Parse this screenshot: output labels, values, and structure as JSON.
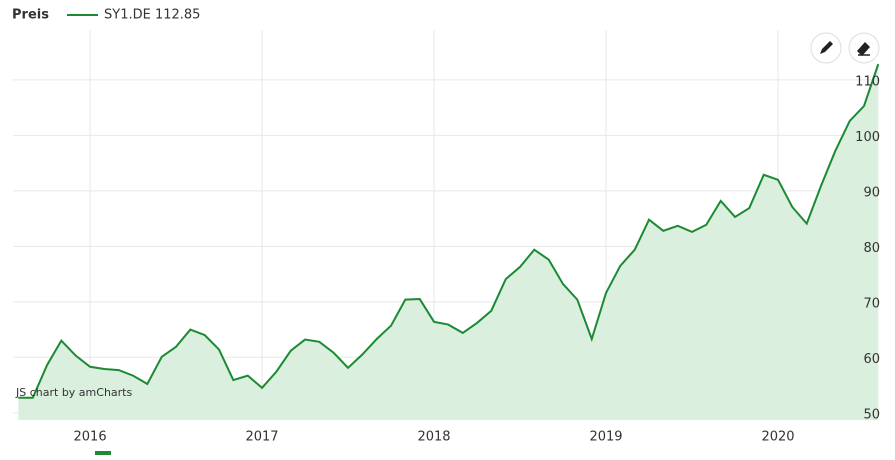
{
  "chart_data": {
    "type": "area",
    "title": "Preis",
    "credit": "JS chart by amCharts",
    "x": [
      2015.583,
      2015.667,
      2015.75,
      2015.833,
      2015.917,
      2016,
      2016.083,
      2016.167,
      2016.25,
      2016.333,
      2016.417,
      2016.5,
      2016.583,
      2016.667,
      2016.75,
      2016.833,
      2016.917,
      2017,
      2017.083,
      2017.167,
      2017.25,
      2017.333,
      2017.417,
      2017.5,
      2017.583,
      2017.667,
      2017.75,
      2017.833,
      2017.917,
      2018,
      2018.083,
      2018.167,
      2018.25,
      2018.333,
      2018.417,
      2018.5,
      2018.583,
      2018.667,
      2018.75,
      2018.833,
      2018.917,
      2019,
      2019.083,
      2019.167,
      2019.25,
      2019.333,
      2019.417,
      2019.5,
      2019.583,
      2019.667,
      2019.75,
      2019.833,
      2019.917,
      2020,
      2020.083,
      2020.167,
      2020.25,
      2020.333,
      2020.417,
      2020.5,
      2020.583
    ],
    "series": [
      {
        "name": "SY1.DE 112.85",
        "color": "#1b8a32",
        "fill": "#dbefdf",
        "values": [
          52.7,
          52.7,
          58.6,
          63.0,
          60.3,
          58.3,
          57.9,
          57.7,
          56.7,
          55.2,
          60.1,
          61.9,
          65.0,
          64.0,
          61.4,
          55.9,
          56.7,
          54.5,
          57.4,
          61.2,
          63.2,
          62.8,
          60.8,
          58.1,
          60.5,
          63.3,
          65.7,
          70.4,
          70.5,
          66.4,
          65.9,
          64.4,
          66.2,
          68.4,
          74.1,
          76.3,
          79.4,
          77.6,
          73.2,
          70.4,
          63.3,
          71.6,
          76.5,
          79.4,
          84.8,
          82.8,
          83.7,
          82.6,
          83.9,
          88.2,
          85.3,
          86.9,
          92.9,
          92.0,
          87.1,
          84.1,
          90.9,
          97.2,
          102.6,
          105.3,
          112.85
        ]
      }
    ],
    "xlim": [
      2015.552,
      2020.593
    ],
    "xticks": [
      2016,
      2017,
      2018,
      2019,
      2020
    ],
    "ylim": [
      48.7,
      119
    ],
    "yticks": [
      50,
      60,
      70,
      80,
      90,
      100,
      110
    ],
    "grid": true
  }
}
